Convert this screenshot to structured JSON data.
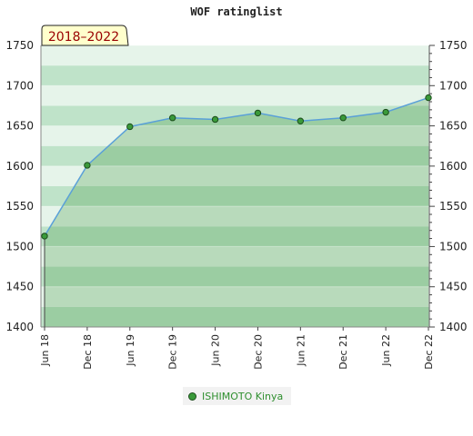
{
  "chart_data": {
    "type": "area",
    "title": "WOF ratinglist",
    "period_label": "2018–2022",
    "x_tick_labels": [
      "Jun 18",
      "Dec 18",
      "Jun 19",
      "Dec 19",
      "Jun 20",
      "Dec 20",
      "Jun 21",
      "Dec 21",
      "Jun 22",
      "Dec 22"
    ],
    "y_ticks": [
      1400,
      1450,
      1500,
      1550,
      1600,
      1650,
      1700,
      1750
    ],
    "ylim": [
      1400,
      1750
    ],
    "grid": true,
    "legend_position": "bottom",
    "series": [
      {
        "name": "ISHIMOTO Kinya",
        "x": [
          "Jun 18",
          "Dec 18",
          "Jun 19",
          "Dec 19",
          "Jun 20",
          "Dec 20",
          "Jun 21",
          "Dec 21",
          "Jun 22",
          "Dec 22"
        ],
        "values": [
          1513,
          1601,
          1649,
          1660,
          1658,
          1666,
          1656,
          1660,
          1667,
          1685
        ]
      }
    ],
    "colors": {
      "line": "#5aa0d8",
      "marker_fill": "#3a9a3a",
      "marker_stroke": "#1c4d1c",
      "area": "#2e8b2e",
      "band_dark": "#bfe3c9",
      "band_light": "#e6f4ea",
      "legend_text": "#2f8f2f"
    }
  }
}
